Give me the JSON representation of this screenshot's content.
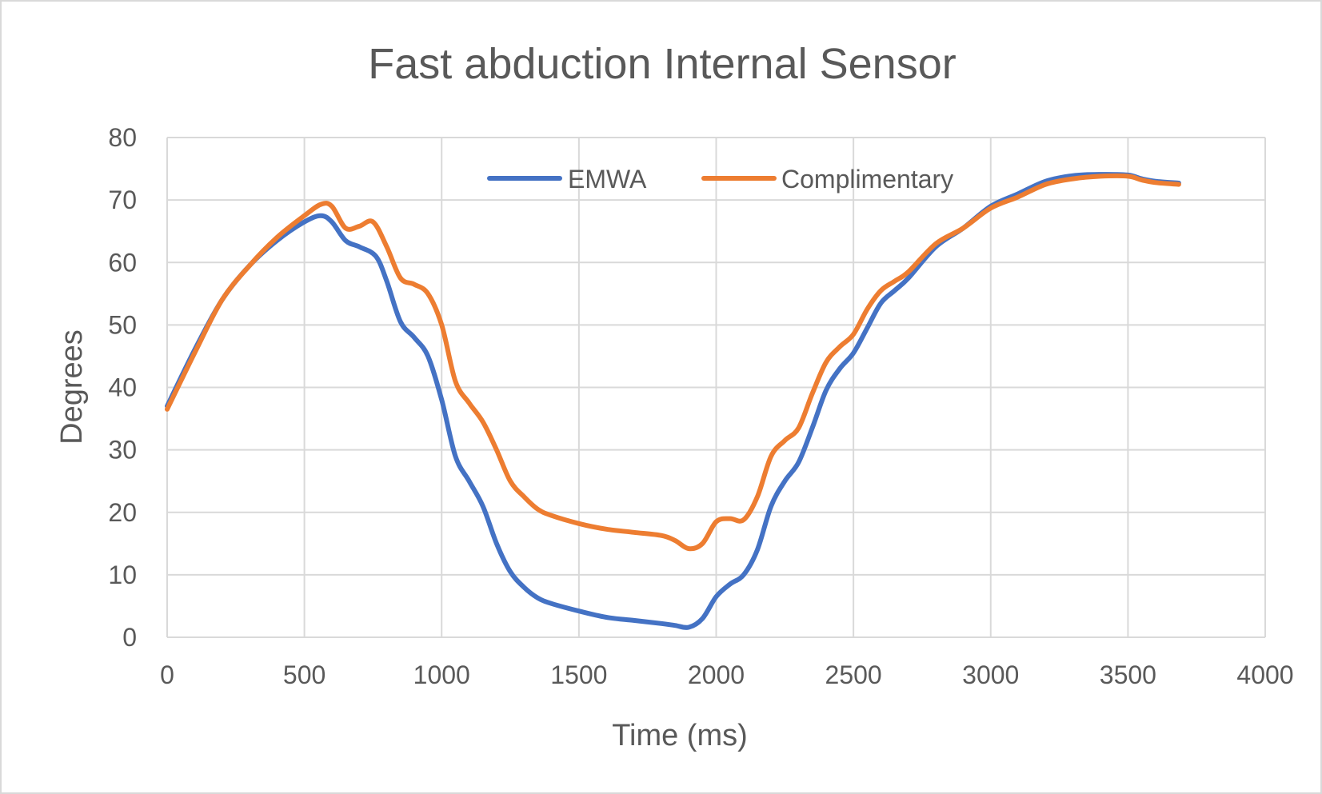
{
  "chart_data": {
    "type": "line",
    "title": "Fast abduction Internal Sensor",
    "xlabel": "Time (ms)",
    "ylabel": "Degrees",
    "xlim": [
      0,
      4000
    ],
    "ylim": [
      0,
      80
    ],
    "xticks": [
      "0",
      "500",
      "1000",
      "1500",
      "2000",
      "2500",
      "3000",
      "3500",
      "4000"
    ],
    "yticks": [
      "0",
      "10",
      "20",
      "30",
      "40",
      "50",
      "60",
      "70",
      "80"
    ],
    "grid": true,
    "legend_position": "top-center",
    "series": [
      {
        "name": "EMWA",
        "color": "#4472C4",
        "points": [
          [
            0,
            37
          ],
          [
            100,
            46
          ],
          [
            200,
            54
          ],
          [
            300,
            59.5
          ],
          [
            400,
            63.5
          ],
          [
            500,
            66.5
          ],
          [
            560,
            67.5
          ],
          [
            600,
            66.5
          ],
          [
            650,
            63.5
          ],
          [
            700,
            62.5
          ],
          [
            760,
            61
          ],
          [
            800,
            57
          ],
          [
            850,
            50.5
          ],
          [
            900,
            48
          ],
          [
            950,
            45
          ],
          [
            1000,
            38
          ],
          [
            1050,
            29
          ],
          [
            1100,
            25
          ],
          [
            1150,
            21
          ],
          [
            1200,
            15
          ],
          [
            1250,
            10.5
          ],
          [
            1300,
            8
          ],
          [
            1350,
            6.3
          ],
          [
            1400,
            5.4
          ],
          [
            1500,
            4.2
          ],
          [
            1600,
            3.2
          ],
          [
            1700,
            2.7
          ],
          [
            1800,
            2.2
          ],
          [
            1850,
            1.9
          ],
          [
            1900,
            1.6
          ],
          [
            1950,
            3
          ],
          [
            2000,
            6.5
          ],
          [
            2050,
            8.5
          ],
          [
            2100,
            10
          ],
          [
            2150,
            14
          ],
          [
            2200,
            21
          ],
          [
            2250,
            25
          ],
          [
            2300,
            28
          ],
          [
            2350,
            33.5
          ],
          [
            2400,
            39.5
          ],
          [
            2450,
            43
          ],
          [
            2500,
            45.5
          ],
          [
            2550,
            49.5
          ],
          [
            2600,
            53.5
          ],
          [
            2650,
            55.5
          ],
          [
            2700,
            57.5
          ],
          [
            2800,
            62.5
          ],
          [
            2900,
            65.5
          ],
          [
            3000,
            69
          ],
          [
            3100,
            71
          ],
          [
            3200,
            73
          ],
          [
            3300,
            73.9
          ],
          [
            3400,
            74.1
          ],
          [
            3500,
            74
          ],
          [
            3550,
            73.4
          ],
          [
            3600,
            73
          ],
          [
            3685,
            72.7
          ]
        ]
      },
      {
        "name": "Complimentary",
        "color": "#ED7D31",
        "points": [
          [
            0,
            36.5
          ],
          [
            100,
            45.5
          ],
          [
            200,
            54
          ],
          [
            300,
            59.5
          ],
          [
            400,
            64
          ],
          [
            500,
            67.5
          ],
          [
            560,
            69.3
          ],
          [
            600,
            69
          ],
          [
            650,
            65.5
          ],
          [
            700,
            65.8
          ],
          [
            750,
            66.5
          ],
          [
            800,
            62.5
          ],
          [
            850,
            57.5
          ],
          [
            900,
            56.5
          ],
          [
            950,
            55
          ],
          [
            1000,
            50
          ],
          [
            1050,
            41
          ],
          [
            1100,
            37.5
          ],
          [
            1150,
            34.5
          ],
          [
            1200,
            30
          ],
          [
            1250,
            25
          ],
          [
            1300,
            22.5
          ],
          [
            1350,
            20.5
          ],
          [
            1400,
            19.5
          ],
          [
            1500,
            18.2
          ],
          [
            1600,
            17.3
          ],
          [
            1700,
            16.8
          ],
          [
            1800,
            16.3
          ],
          [
            1850,
            15.5
          ],
          [
            1900,
            14.2
          ],
          [
            1950,
            15
          ],
          [
            2000,
            18.5
          ],
          [
            2050,
            19
          ],
          [
            2100,
            18.8
          ],
          [
            2150,
            22.5
          ],
          [
            2200,
            29
          ],
          [
            2250,
            31.5
          ],
          [
            2300,
            33.5
          ],
          [
            2350,
            39
          ],
          [
            2400,
            44
          ],
          [
            2450,
            46.5
          ],
          [
            2500,
            48.5
          ],
          [
            2550,
            52.5
          ],
          [
            2600,
            55.5
          ],
          [
            2650,
            57
          ],
          [
            2700,
            58.5
          ],
          [
            2800,
            63
          ],
          [
            2900,
            65.5
          ],
          [
            3000,
            68.7
          ],
          [
            3100,
            70.5
          ],
          [
            3200,
            72.5
          ],
          [
            3300,
            73.4
          ],
          [
            3400,
            73.8
          ],
          [
            3500,
            73.8
          ],
          [
            3550,
            73.2
          ],
          [
            3600,
            72.8
          ],
          [
            3685,
            72.5
          ]
        ]
      }
    ]
  }
}
